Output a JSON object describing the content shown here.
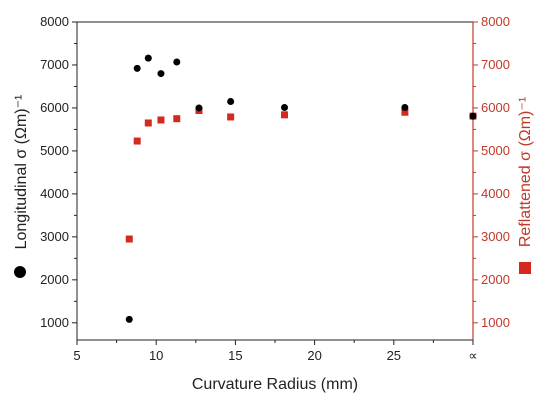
{
  "chart_data": {
    "type": "scatter",
    "title": "",
    "xlabel": "Curvature Radius (mm)",
    "ylabel_left": "Longitudinal σ (Ωm)⁻¹",
    "ylabel_right": "Reflattened σ (Ωm)⁻¹",
    "x_ticks": [
      "5",
      "10",
      "15",
      "20",
      "25",
      "∝"
    ],
    "y_ticks": [
      "1000",
      "2000",
      "3000",
      "4000",
      "5000",
      "6000",
      "7000",
      "8000"
    ],
    "xlim": [
      5,
      30
    ],
    "ylim": [
      600,
      8000
    ],
    "series": [
      {
        "name": "Longitudinal",
        "marker": "circle",
        "color": "#000000",
        "axis": "left",
        "points": [
          {
            "x": 8.3,
            "y": 1080
          },
          {
            "x": 8.8,
            "y": 6920
          },
          {
            "x": 9.5,
            "y": 7160
          },
          {
            "x": 10.3,
            "y": 6800
          },
          {
            "x": 11.3,
            "y": 7070
          },
          {
            "x": 12.7,
            "y": 6000
          },
          {
            "x": 14.7,
            "y": 6150
          },
          {
            "x": 18.1,
            "y": 6010
          },
          {
            "x": 25.7,
            "y": 6010
          },
          {
            "x": 30,
            "y": 5810
          }
        ]
      },
      {
        "name": "Reflattened",
        "marker": "square",
        "color": "#d42a1e",
        "axis": "right",
        "points": [
          {
            "x": 8.3,
            "y": 2950
          },
          {
            "x": 8.8,
            "y": 5230
          },
          {
            "x": 9.5,
            "y": 5650
          },
          {
            "x": 10.3,
            "y": 5720
          },
          {
            "x": 11.3,
            "y": 5750
          },
          {
            "x": 12.7,
            "y": 5940
          },
          {
            "x": 14.7,
            "y": 5790
          },
          {
            "x": 18.1,
            "y": 5840
          },
          {
            "x": 25.7,
            "y": 5900
          },
          {
            "x": 30,
            "y": 5810
          }
        ]
      }
    ],
    "grid": false,
    "legend": "inline with axis titles"
  }
}
